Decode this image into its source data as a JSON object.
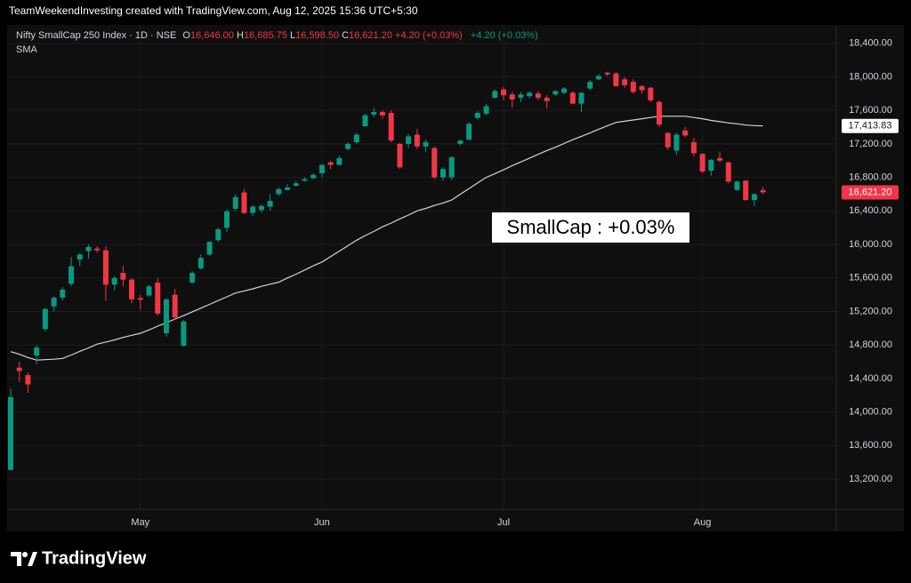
{
  "header": {
    "attribution": "TeamWeekendInvesting created with TradingView.com, Aug 12, 2025 15:36 UTC+5:30"
  },
  "footer": {
    "brand": "TradingView"
  },
  "chart_data": {
    "type": "candlestick",
    "title": "Nifty SmallCap 250 Index · 1D · NSE",
    "legend": {
      "ohlc": [
        {
          "key": "O",
          "value": "16,646.00"
        },
        {
          "key": "H",
          "value": "16,685.75"
        },
        {
          "key": "L",
          "value": "16,598.50"
        },
        {
          "key": "C",
          "value": "16,621.20"
        }
      ],
      "changes": [
        "+4.20 (+0.03%)",
        "+4.20 (+0.03%)"
      ]
    },
    "annotation": "SmallCap : +0.03%",
    "up_color": "#089981",
    "down_color": "#f23645",
    "categories": [
      null,
      null,
      null,
      null,
      null,
      null,
      null,
      null,
      null,
      null,
      null,
      null,
      null,
      null,
      null,
      "May",
      null,
      null,
      null,
      null,
      null,
      null,
      null,
      null,
      null,
      null,
      null,
      null,
      null,
      null,
      null,
      null,
      null,
      null,
      null,
      null,
      "Jun",
      null,
      null,
      null,
      null,
      null,
      null,
      null,
      null,
      null,
      null,
      null,
      null,
      null,
      null,
      null,
      null,
      null,
      null,
      null,
      null,
      "Jul",
      null,
      null,
      null,
      null,
      null,
      null,
      null,
      null,
      null,
      null,
      null,
      null,
      null,
      null,
      null,
      null,
      null,
      null,
      null,
      null,
      null,
      null,
      "Aug",
      null,
      null,
      null,
      null,
      null,
      null,
      null
    ],
    "open": [
      13310,
      14530,
      14440,
      14675,
      14990,
      15260,
      15365,
      15530,
      15820,
      15920,
      15950,
      15930,
      15520,
      15660,
      15580,
      15360,
      15390,
      15545,
      14940,
      15400,
      14790,
      15545,
      15715,
      15880,
      16050,
      16200,
      16425,
      16620,
      16375,
      16410,
      16450,
      16600,
      16650,
      16700,
      16760,
      16790,
      16850,
      16980,
      16950,
      17140,
      17220,
      17410,
      17550,
      17580,
      17570,
      17200,
      17200,
      17310,
      17170,
      17150,
      16800,
      16800,
      17200,
      17250,
      17510,
      17560,
      17750,
      17850,
      17790,
      17750,
      17770,
      17800,
      17750,
      17790,
      17810,
      17810,
      17680,
      17860,
      17970,
      18050,
      18040,
      17970,
      17940,
      17890,
      17870,
      17700,
      17330,
      17120,
      17360,
      17220,
      17080,
      16880,
      17030,
      16980,
      16650,
      16760,
      16530,
      16646
    ],
    "high": [
      14280,
      14600,
      14470,
      14800,
      15240,
      15380,
      15490,
      15850,
      15900,
      16000,
      15980,
      15980,
      15620,
      15740,
      15600,
      15400,
      15520,
      15600,
      15360,
      15470,
      15100,
      15680,
      15880,
      16040,
      16200,
      16420,
      16600,
      16660,
      16470,
      16480,
      16600,
      16680,
      16720,
      16760,
      16800,
      16850,
      16960,
      17000,
      17060,
      17220,
      17330,
      17560,
      17630,
      17600,
      17600,
      17210,
      17320,
      17380,
      17250,
      17170,
      16920,
      17050,
      17250,
      17460,
      17590,
      17680,
      17850,
      17880,
      17820,
      17820,
      17830,
      17830,
      17780,
      17840,
      17880,
      17830,
      17820,
      17960,
      18030,
      18060,
      18060,
      18000,
      17970,
      17900,
      17880,
      17720,
      17340,
      17330,
      17400,
      17270,
      17090,
      17020,
      17110,
      16990,
      16760,
      16770,
      16610,
      16685.75
    ],
    "low": [
      13300,
      14360,
      14230,
      14570,
      14960,
      15200,
      15330,
      15500,
      15740,
      15830,
      15900,
      15330,
      15450,
      15500,
      15300,
      15220,
      15380,
      15150,
      14900,
      15100,
      14780,
      15530,
      15700,
      15860,
      16030,
      16150,
      16400,
      16360,
      16340,
      16380,
      16400,
      16580,
      16640,
      16690,
      16750,
      16780,
      16800,
      16900,
      16940,
      17120,
      17200,
      17400,
      17520,
      17500,
      17220,
      16900,
      17150,
      17140,
      17100,
      16780,
      16760,
      16770,
      17180,
      17240,
      17490,
      17540,
      17740,
      17720,
      17630,
      17700,
      17740,
      17720,
      17620,
      17770,
      17790,
      17670,
      17580,
      17840,
      17960,
      18010,
      17880,
      17870,
      17800,
      17800,
      17700,
      17400,
      17130,
      17070,
      17280,
      17050,
      16850,
      16820,
      16980,
      16730,
      16640,
      16520,
      16460,
      16598.5
    ],
    "close": [
      14180,
      14490,
      14330,
      14770,
      15230,
      15365,
      15460,
      15740,
      15880,
      15970,
      15930,
      15520,
      15600,
      15580,
      15345,
      15340,
      15500,
      15175,
      15345,
      15130,
      15080,
      15660,
      15840,
      16030,
      16180,
      16395,
      16565,
      16375,
      16450,
      16460,
      16520,
      16660,
      16680,
      16730,
      16780,
      16830,
      16950,
      16950,
      17030,
      17200,
      17310,
      17540,
      17580,
      17540,
      17240,
      16920,
      17290,
      17170,
      17220,
      16800,
      16900,
      17040,
      17240,
      17440,
      17570,
      17650,
      17830,
      17780,
      17730,
      17790,
      17810,
      17750,
      17710,
      17830,
      17860,
      17680,
      17810,
      17940,
      18010,
      18030,
      17890,
      17900,
      17820,
      17840,
      17720,
      17430,
      17160,
      17310,
      17300,
      17090,
      16870,
      17010,
      17000,
      16750,
      16750,
      16530,
      16600,
      16621.2
    ],
    "sma": {
      "name": "SMA",
      "color": "#d1d4dc",
      "values": [
        14720,
        14690,
        14650,
        14620,
        14625,
        14630,
        14640,
        14680,
        14725,
        14765,
        14810,
        14835,
        14860,
        14890,
        14915,
        14940,
        14980,
        15025,
        15065,
        15110,
        15150,
        15195,
        15240,
        15285,
        15330,
        15375,
        15420,
        15445,
        15470,
        15500,
        15525,
        15550,
        15600,
        15645,
        15695,
        15745,
        15790,
        15855,
        15920,
        15985,
        16050,
        16105,
        16155,
        16210,
        16255,
        16305,
        16350,
        16400,
        16430,
        16465,
        16495,
        16530,
        16600,
        16665,
        16735,
        16800,
        16845,
        16890,
        16940,
        16985,
        17030,
        17075,
        17120,
        17160,
        17205,
        17250,
        17290,
        17330,
        17375,
        17415,
        17455,
        17470,
        17485,
        17500,
        17515,
        17530,
        17530,
        17530,
        17530,
        17515,
        17500,
        17480,
        17465,
        17450,
        17440,
        17425,
        17418,
        17413.83
      ]
    },
    "price_labels": [
      {
        "value": 17413.83,
        "label": "17,413.83",
        "background": "#ffffff",
        "text_color": "#131722"
      },
      {
        "value": 16621.2,
        "label": "16,621.20",
        "background": "#f23645",
        "text_color": "#ffffff"
      }
    ],
    "ylim": [
      12840,
      18620
    ],
    "yticks": [
      {
        "value": 13200,
        "label": "13,200.00"
      },
      {
        "value": 13600,
        "label": "13,600.00"
      },
      {
        "value": 14000,
        "label": "14,000.00"
      },
      {
        "value": 14400,
        "label": "14,400.00"
      },
      {
        "value": 14800,
        "label": "14,800.00"
      },
      {
        "value": 15200,
        "label": "15,200.00"
      },
      {
        "value": 15600,
        "label": "15,600.00"
      },
      {
        "value": 16000,
        "label": "16,000.00"
      },
      {
        "value": 16400,
        "label": "16,400.00"
      },
      {
        "value": 16800,
        "label": "16,800.00"
      },
      {
        "value": 17200,
        "label": "17,200.00"
      },
      {
        "value": 17600,
        "label": "17,600.00"
      },
      {
        "value": 18000,
        "label": "18,000.00"
      },
      {
        "value": 18400,
        "label": "18,400.00"
      }
    ],
    "grid": true
  }
}
